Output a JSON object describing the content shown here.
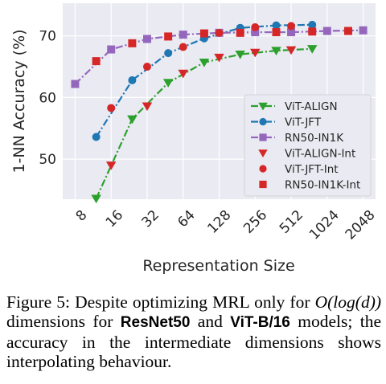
{
  "chart_data": {
    "type": "line",
    "xlabel": "Representation Size",
    "ylabel": "1-NN Accuracy (%)",
    "x_scale": "log2",
    "x_ticks": [
      "8",
      "16",
      "32",
      "64",
      "128",
      "256",
      "512",
      "1024",
      "2048"
    ],
    "x_tick_values": [
      8,
      16,
      32,
      64,
      128,
      256,
      512,
      1024,
      2048
    ],
    "y_ticks": [
      "50",
      "60",
      "70"
    ],
    "y_tick_values": [
      50,
      60,
      70
    ],
    "xlim": [
      6.3,
      2600
    ],
    "ylim": [
      43.5,
      75.3
    ],
    "grid": true,
    "legend_position": "lower-right",
    "series": [
      {
        "name": "ViT-ALIGN",
        "color": "#2ca02c",
        "marker": "triangle-down",
        "dash": "dashdot",
        "x": [
          12,
          24,
          48,
          96,
          192,
          384,
          768
        ],
        "y": [
          43.6,
          56.5,
          62.4,
          65.7,
          67.0,
          67.6,
          67.9
        ]
      },
      {
        "name": "ViT-JFT",
        "color": "#1f77b4",
        "marker": "circle",
        "dash": "dashdot",
        "x": [
          12,
          24,
          48,
          96,
          192,
          384,
          768
        ],
        "y": [
          53.6,
          62.8,
          67.2,
          69.6,
          71.3,
          71.7,
          71.8
        ]
      },
      {
        "name": "RN50-IN1K",
        "color": "#9467bd",
        "marker": "square",
        "dash": "dashdot",
        "x": [
          8,
          16,
          32,
          64,
          128,
          256,
          512,
          1024,
          2048
        ],
        "y": [
          62.2,
          67.8,
          69.5,
          70.2,
          70.5,
          70.6,
          70.6,
          70.8,
          70.9
        ]
      },
      {
        "name": "ViT-ALIGN-Int",
        "color": "#d62728",
        "marker": "triangle-down",
        "dash": "none",
        "x": [
          16,
          32,
          64,
          128,
          256,
          512
        ],
        "y": [
          49.0,
          58.6,
          63.9,
          66.5,
          67.3,
          67.7
        ]
      },
      {
        "name": "ViT-JFT-Int",
        "color": "#d62728",
        "marker": "circle",
        "dash": "none",
        "x": [
          16,
          32,
          64,
          128,
          256,
          512
        ],
        "y": [
          58.3,
          65.0,
          68.2,
          70.5,
          71.4,
          71.6
        ]
      },
      {
        "name": "RN50-IN1K-Int",
        "color": "#d62728",
        "marker": "square",
        "dash": "none",
        "x": [
          12,
          24,
          48,
          96,
          192,
          384,
          768,
          1536
        ],
        "y": [
          65.9,
          68.8,
          69.9,
          70.4,
          70.5,
          70.6,
          70.7,
          70.8
        ]
      }
    ]
  },
  "caption": {
    "label": "Figure 5:",
    "t1": " Despite optimizing MRL only for ",
    "math": "O(log(d))",
    "t2": " dimensions for ",
    "m1": "ResNet50",
    "t3": " and ",
    "m2": "ViT-B/16",
    "t4": " models; the accuracy in the intermediate dimensions shows interpolating behaviour."
  }
}
